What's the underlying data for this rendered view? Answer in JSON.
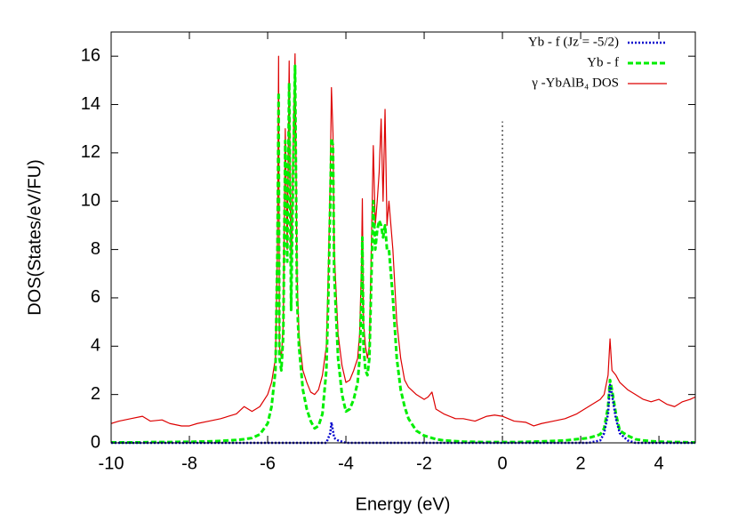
{
  "chart_data": {
    "type": "line",
    "x_label": "Energy (eV)",
    "y_label": "DOS(States/eV/FU)",
    "xlim": [
      -10,
      4.93
    ],
    "ylim": [
      0,
      17
    ],
    "xticks": [
      -10,
      -8,
      -6,
      -4,
      -2,
      0,
      2,
      4
    ],
    "yticks": [
      0,
      2,
      4,
      6,
      8,
      10,
      12,
      14,
      16
    ],
    "legend": "top-right",
    "vline": {
      "x": 0,
      "ymax": 13.3,
      "color": "#000000"
    },
    "x": [
      -10,
      -9.8,
      -9.5,
      -9.2,
      -9.0,
      -8.7,
      -8.5,
      -8.2,
      -8.0,
      -7.8,
      -7.5,
      -7.2,
      -7.0,
      -6.8,
      -6.6,
      -6.4,
      -6.2,
      -6.0,
      -5.9,
      -5.8,
      -5.75,
      -5.72,
      -5.7,
      -5.65,
      -5.6,
      -5.55,
      -5.5,
      -5.45,
      -5.4,
      -5.35,
      -5.3,
      -5.25,
      -5.2,
      -5.1,
      -5.0,
      -4.9,
      -4.8,
      -4.7,
      -4.6,
      -4.5,
      -4.45,
      -4.4,
      -4.37,
      -4.33,
      -4.3,
      -4.2,
      -4.1,
      -4.0,
      -3.9,
      -3.8,
      -3.7,
      -3.65,
      -3.6,
      -3.58,
      -3.55,
      -3.5,
      -3.45,
      -3.4,
      -3.3,
      -3.25,
      -3.2,
      -3.15,
      -3.1,
      -3.05,
      -3.0,
      -2.95,
      -2.9,
      -2.8,
      -2.7,
      -2.6,
      -2.5,
      -2.4,
      -2.2,
      -2.0,
      -1.9,
      -1.8,
      -1.7,
      -1.5,
      -1.2,
      -1.0,
      -0.7,
      -0.4,
      -0.2,
      0.0,
      0.3,
      0.6,
      0.8,
      1.0,
      1.3,
      1.6,
      1.9,
      2.2,
      2.5,
      2.6,
      2.7,
      2.75,
      2.8,
      2.9,
      3.0,
      3.2,
      3.4,
      3.6,
      3.8,
      4.0,
      4.2,
      4.4,
      4.6,
      4.8,
      4.93
    ],
    "series": [
      {
        "name": "Yb - f (Jz = -5/2)",
        "color": "#0000cc",
        "style": "dotted",
        "values": [
          0,
          0,
          0,
          0,
          0,
          0,
          0,
          0,
          0,
          0,
          0,
          0,
          0,
          0,
          0,
          0,
          0,
          0,
          0,
          0,
          0,
          0,
          0,
          0,
          0,
          0,
          0,
          0,
          0,
          0,
          0,
          0,
          0,
          0,
          0,
          0,
          0,
          0,
          0,
          0,
          0.2,
          0.4,
          0.85,
          0.5,
          0.2,
          0.1,
          0.05,
          0,
          0,
          0,
          0,
          0,
          0,
          0,
          0,
          0,
          0,
          0,
          0,
          0,
          0,
          0,
          0,
          0,
          0,
          0,
          0,
          0,
          0,
          0,
          0,
          0,
          0,
          0,
          0,
          0,
          0,
          0,
          0,
          0,
          0,
          0,
          0,
          0,
          0,
          0,
          0,
          0,
          0,
          0,
          0,
          0,
          0.1,
          0.4,
          1.2,
          2.4,
          2.0,
          1.0,
          0.4,
          0.1,
          0,
          0,
          0,
          0,
          0,
          0,
          0,
          0,
          0
        ]
      },
      {
        "name": "Yb - f",
        "color": "#00ee00",
        "style": "dashed",
        "values": [
          0.02,
          0.02,
          0.02,
          0.02,
          0.03,
          0.03,
          0.03,
          0.04,
          0.04,
          0.05,
          0.06,
          0.08,
          0.1,
          0.12,
          0.15,
          0.2,
          0.35,
          0.8,
          1.5,
          3,
          8,
          14.5,
          3.5,
          3,
          4.5,
          12.5,
          7.5,
          14.9,
          5.5,
          11,
          15.6,
          6,
          4,
          2.2,
          1.4,
          0.9,
          0.6,
          0.7,
          1.2,
          3,
          6,
          10,
          12.6,
          12.3,
          7,
          3.5,
          2,
          1.3,
          1.4,
          1.8,
          2.5,
          3.5,
          6,
          8.5,
          4,
          3,
          2.8,
          3.5,
          10,
          8,
          8.8,
          9.2,
          9.0,
          8.5,
          9.0,
          8,
          8,
          6,
          3.5,
          2.2,
          1.5,
          1.0,
          0.5,
          0.3,
          0.25,
          0.2,
          0.15,
          0.1,
          0.07,
          0.05,
          0.04,
          0.03,
          0.03,
          0.03,
          0.03,
          0.04,
          0.05,
          0.06,
          0.08,
          0.1,
          0.15,
          0.2,
          0.35,
          0.6,
          1.5,
          2.6,
          2.2,
          1.2,
          0.5,
          0.3,
          0.15,
          0.1,
          0.07,
          0.05,
          0.04,
          0.03,
          0.03,
          0.02,
          0.02
        ]
      },
      {
        "name": "γ -YbAlB₄ DOS",
        "color": "#dd0000",
        "style": "solid",
        "values": [
          0.8,
          0.9,
          1.0,
          1.1,
          0.9,
          0.95,
          0.8,
          0.7,
          0.7,
          0.8,
          0.9,
          1.0,
          1.1,
          1.2,
          1.5,
          1.3,
          1.5,
          2.0,
          2.5,
          3.5,
          8,
          16.0,
          4,
          3.5,
          5,
          13,
          8,
          15.8,
          6,
          12,
          16.1,
          7,
          4.5,
          3,
          2.5,
          2.1,
          2.0,
          2.2,
          2.8,
          4,
          7,
          11,
          14.7,
          12.8,
          8,
          4.5,
          3.2,
          2.5,
          2.6,
          3,
          3.5,
          4.5,
          7.5,
          10.1,
          5,
          4,
          3.5,
          4,
          12.3,
          9,
          10,
          11.2,
          13.4,
          10,
          13.8,
          9,
          10,
          8,
          5,
          3.5,
          2.6,
          2.3,
          2.0,
          1.8,
          1.9,
          2.1,
          1.4,
          1.2,
          1.0,
          1.0,
          0.9,
          1.1,
          1.15,
          1.1,
          0.9,
          0.85,
          0.7,
          0.8,
          0.9,
          1.0,
          1.2,
          1.5,
          1.8,
          2.0,
          2.8,
          4.3,
          3.0,
          2.8,
          2.5,
          2.2,
          2.0,
          1.8,
          1.7,
          1.8,
          1.6,
          1.5,
          1.7,
          1.8,
          1.9
        ]
      }
    ]
  }
}
